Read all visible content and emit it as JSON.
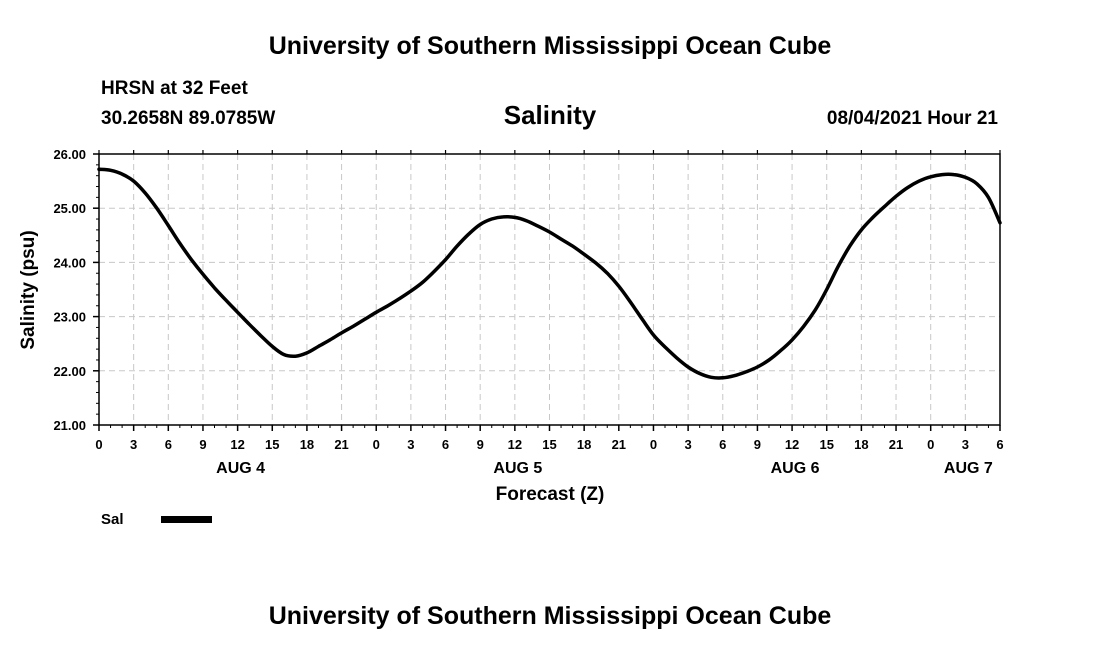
{
  "header": {
    "top_title": "University of Southern Mississippi Ocean Cube",
    "bottom_title": "University of Southern Mississippi Ocean Cube",
    "station": "HRSN at 32 Feet",
    "coords": "30.2658N  89.0785W",
    "datetime": "08/04/2021 Hour 21"
  },
  "legend": {
    "label": "Sal"
  },
  "chart_data": {
    "type": "line",
    "title": "Salinity",
    "xlabel": "Forecast (Z)",
    "ylabel": "Salinity (psu)",
    "x_unit": "hours from 00Z Aug 4",
    "xlim": [
      0,
      78
    ],
    "ylim": [
      21,
      26
    ],
    "y_ticks": [
      "21.00",
      "22.00",
      "23.00",
      "24.00",
      "25.00",
      "26.00"
    ],
    "x_ticks": [
      {
        "h": 0,
        "label": "0"
      },
      {
        "h": 3,
        "label": "3"
      },
      {
        "h": 6,
        "label": "6"
      },
      {
        "h": 9,
        "label": "9"
      },
      {
        "h": 12,
        "label": "12"
      },
      {
        "h": 15,
        "label": "15"
      },
      {
        "h": 18,
        "label": "18"
      },
      {
        "h": 21,
        "label": "21"
      },
      {
        "h": 24,
        "label": "0"
      },
      {
        "h": 27,
        "label": "3"
      },
      {
        "h": 30,
        "label": "6"
      },
      {
        "h": 33,
        "label": "9"
      },
      {
        "h": 36,
        "label": "12"
      },
      {
        "h": 39,
        "label": "15"
      },
      {
        "h": 42,
        "label": "18"
      },
      {
        "h": 45,
        "label": "21"
      },
      {
        "h": 48,
        "label": "0"
      },
      {
        "h": 51,
        "label": "3"
      },
      {
        "h": 54,
        "label": "6"
      },
      {
        "h": 57,
        "label": "9"
      },
      {
        "h": 60,
        "label": "12"
      },
      {
        "h": 63,
        "label": "15"
      },
      {
        "h": 66,
        "label": "18"
      },
      {
        "h": 69,
        "label": "21"
      },
      {
        "h": 72,
        "label": "0"
      },
      {
        "h": 75,
        "label": "3"
      },
      {
        "h": 78,
        "label": "6"
      }
    ],
    "day_labels": [
      {
        "h": 12,
        "label": "AUG 4"
      },
      {
        "h": 36,
        "label": "AUG 5"
      },
      {
        "h": 60,
        "label": "AUG 6"
      },
      {
        "h": 75,
        "label": "AUG 7"
      }
    ],
    "grid": true,
    "series": [
      {
        "name": "Sal",
        "color": "#000000",
        "x": [
          0,
          1,
          2,
          3,
          4,
          5,
          6,
          7,
          8,
          9,
          10,
          11,
          12,
          13,
          14,
          15,
          16,
          17,
          18,
          19,
          20,
          21,
          22,
          23,
          24,
          25,
          26,
          27,
          28,
          29,
          30,
          31,
          32,
          33,
          34,
          35,
          36,
          37,
          38,
          39,
          40,
          41,
          42,
          43,
          44,
          45,
          46,
          47,
          48,
          49,
          50,
          51,
          52,
          53,
          54,
          55,
          56,
          57,
          58,
          59,
          60,
          61,
          62,
          63,
          64,
          65,
          66,
          67,
          68,
          69,
          70,
          71,
          72,
          73,
          74,
          75,
          76,
          77,
          78
        ],
        "values": [
          25.72,
          25.7,
          25.63,
          25.5,
          25.28,
          25.0,
          24.68,
          24.35,
          24.05,
          23.78,
          23.53,
          23.3,
          23.08,
          22.86,
          22.65,
          22.45,
          22.3,
          22.27,
          22.33,
          22.45,
          22.57,
          22.7,
          22.82,
          22.95,
          23.08,
          23.2,
          23.33,
          23.47,
          23.63,
          23.83,
          24.05,
          24.3,
          24.52,
          24.7,
          24.8,
          24.84,
          24.83,
          24.77,
          24.67,
          24.56,
          24.43,
          24.3,
          24.15,
          23.99,
          23.8,
          23.56,
          23.27,
          22.96,
          22.66,
          22.44,
          22.24,
          22.07,
          21.95,
          21.88,
          21.87,
          21.91,
          21.98,
          22.07,
          22.2,
          22.37,
          22.57,
          22.82,
          23.12,
          23.5,
          23.93,
          24.3,
          24.6,
          24.83,
          25.03,
          25.22,
          25.38,
          25.5,
          25.58,
          25.62,
          25.62,
          25.57,
          25.45,
          25.2,
          24.73
        ]
      }
    ]
  }
}
